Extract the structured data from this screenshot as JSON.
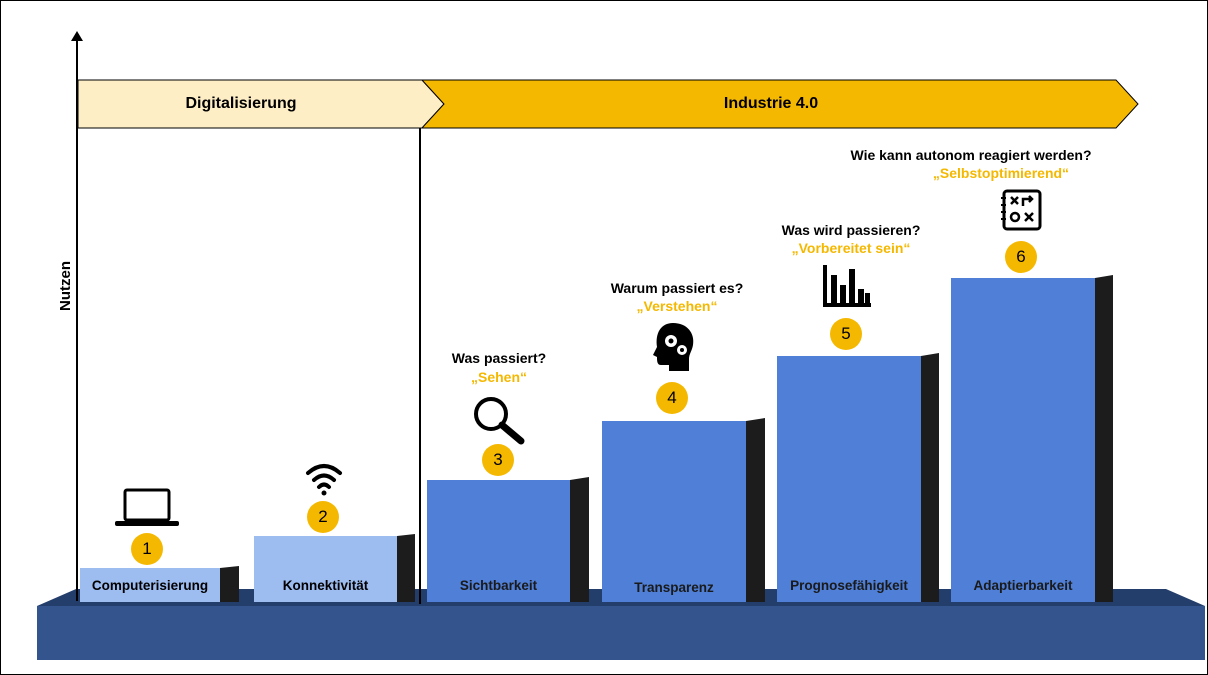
{
  "axis": {
    "y_label": "Nutzen"
  },
  "phases": {
    "digital": {
      "label": "Digitalisierung"
    },
    "industrie": {
      "label": "Industrie 4.0"
    }
  },
  "stages": [
    {
      "number": "1",
      "label": "Computerisierung",
      "question": "",
      "quote": "",
      "icon": "laptop-icon"
    },
    {
      "number": "2",
      "label": "Konnektivität",
      "question": "",
      "quote": "",
      "icon": "wifi-icon"
    },
    {
      "number": "3",
      "label": "Sichtbarkeit",
      "question": "Was passiert?",
      "quote": "„Sehen“",
      "icon": "magnifier-icon"
    },
    {
      "number": "4",
      "label": "Transparenz",
      "question": "Warum passiert es?",
      "quote": "„Verstehen“",
      "icon": "brain-gears-icon"
    },
    {
      "number": "5",
      "label": "Prognosefähigkeit",
      "question": "Was wird passieren?",
      "quote": "„Vorbereitet sein“",
      "icon": "bar-chart-icon"
    },
    {
      "number": "6",
      "label": "Adaptierbarkeit",
      "question": "Wie kann autonom reagiert werden?",
      "quote": "„Selbstoptimierend“",
      "icon": "strategy-board-icon"
    }
  ],
  "colors": {
    "accent_yellow": "#f5b800",
    "light_band": "#fdeec6",
    "bar_blue": "#5a86dc",
    "bar_light_blue": "#9dbcf0",
    "base_navy": "#2e4a7e"
  }
}
